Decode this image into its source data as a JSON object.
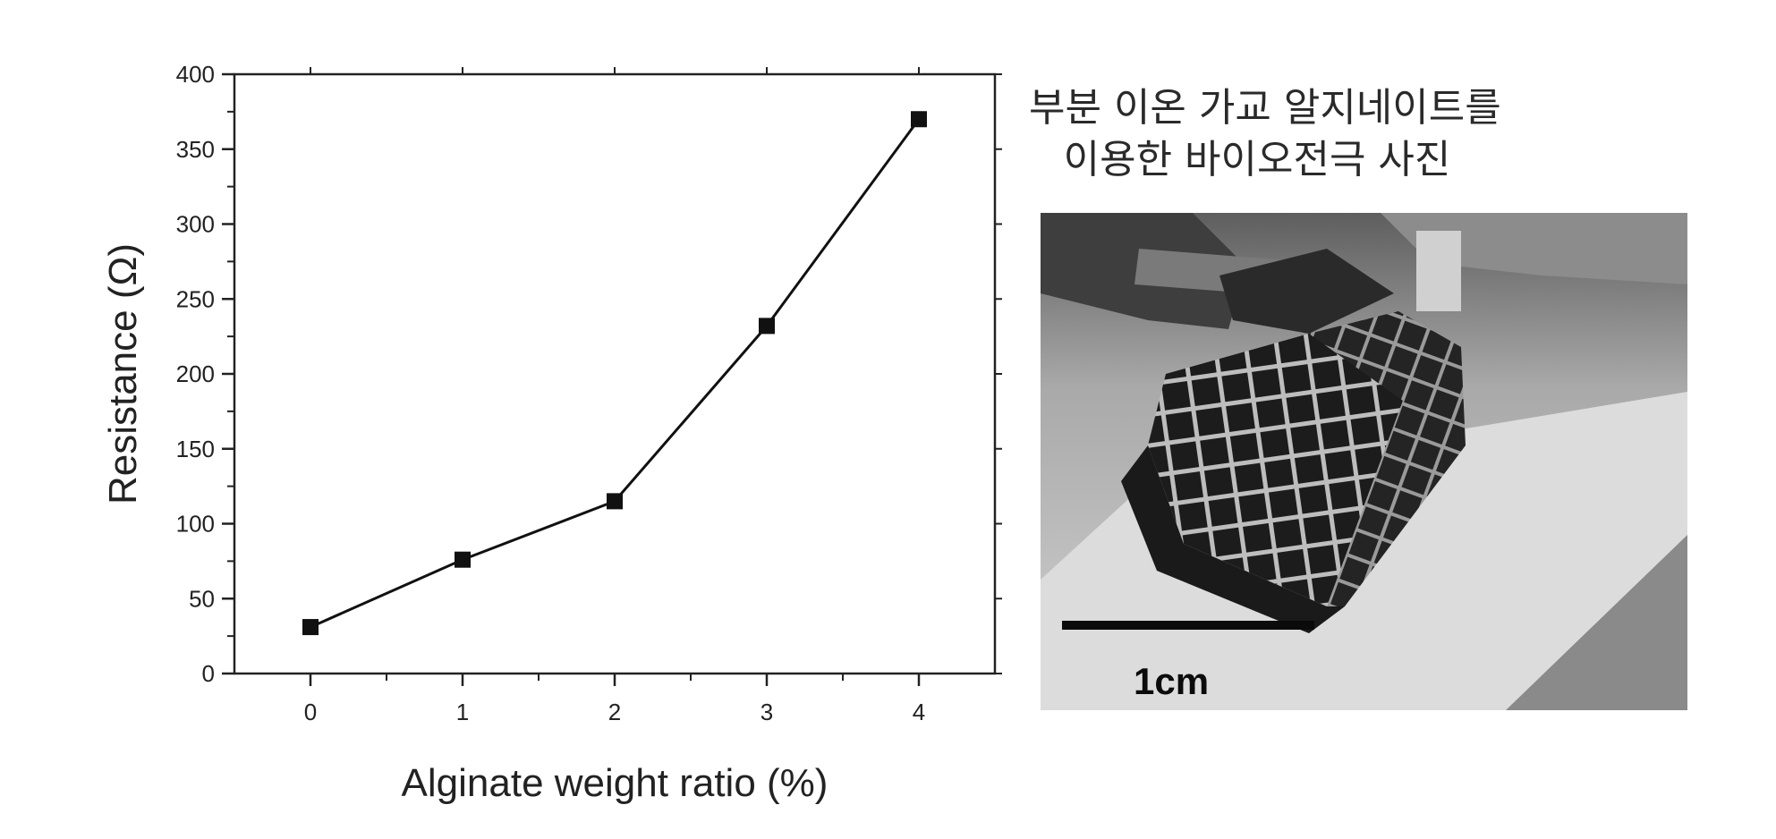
{
  "chart_data": {
    "type": "line",
    "x": [
      0,
      1,
      2,
      3,
      4
    ],
    "series": [
      {
        "values": [
          31,
          76,
          115,
          232,
          370
        ],
        "color": "#111111",
        "marker": "square"
      }
    ],
    "xlabel": "Alginate weight ratio (%)",
    "ylabel": "Resistance (Ω)",
    "xlim": [
      -0.5,
      4.5
    ],
    "ylim": [
      0,
      400
    ],
    "xticks": [
      0,
      1,
      2,
      3,
      4
    ],
    "yticks": [
      0,
      50,
      100,
      150,
      200,
      250,
      300,
      350,
      400
    ],
    "grid": false
  },
  "photo": {
    "caption_line1": "부분 이온 가교 알지네이트를",
    "caption_line2": "이용한 바이오전극 사진",
    "scale_label": "1cm"
  }
}
